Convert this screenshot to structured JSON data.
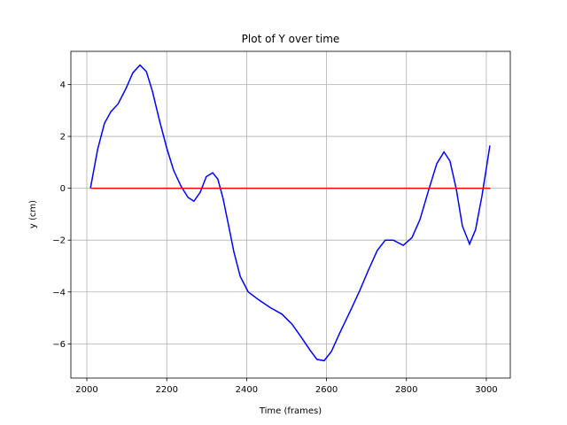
{
  "chart_data": {
    "type": "line",
    "title": "Plot of Y over time",
    "xlabel": "Time (frames)",
    "ylabel": "y (cm)",
    "xlim": [
      1960,
      3060
    ],
    "ylim": [
      -7.32,
      5.28
    ],
    "xticks": [
      2000,
      2200,
      2400,
      2600,
      2800,
      3000
    ],
    "yticks": [
      {
        "value": -6,
        "label": "−6"
      },
      {
        "value": -4,
        "label": "−4"
      },
      {
        "value": -2,
        "label": "−2"
      },
      0,
      2,
      4
    ],
    "grid": true,
    "series": [
      {
        "color": "#0000ff",
        "x": [
          2009,
          2027,
          2044,
          2060,
          2078,
          2098,
          2115,
          2133,
          2149,
          2164,
          2182,
          2200,
          2217,
          2235,
          2253,
          2268,
          2284,
          2299,
          2315,
          2328,
          2341,
          2355,
          2368,
          2384,
          2404,
          2430,
          2459,
          2488,
          2514,
          2537,
          2559,
          2576,
          2594,
          2612,
          2634,
          2659,
          2683,
          2705,
          2727,
          2747,
          2767,
          2792,
          2814,
          2834,
          2856,
          2876,
          2894,
          2909,
          2925,
          2940,
          2958,
          2973,
          2989,
          3009
        ],
        "values": [
          0.0,
          1.5,
          2.5,
          2.95,
          3.25,
          3.85,
          4.45,
          4.75,
          4.5,
          3.75,
          2.6,
          1.55,
          0.7,
          0.1,
          -0.35,
          -0.5,
          -0.15,
          0.45,
          0.6,
          0.35,
          -0.4,
          -1.45,
          -2.45,
          -3.4,
          -4.0,
          -4.3,
          -4.6,
          -4.85,
          -5.25,
          -5.75,
          -6.25,
          -6.6,
          -6.65,
          -6.3,
          -5.55,
          -4.75,
          -3.95,
          -3.15,
          -2.4,
          -2.0,
          -2.0,
          -2.2,
          -1.9,
          -1.2,
          -0.05,
          0.95,
          1.4,
          1.05,
          -0.05,
          -1.45,
          -2.15,
          -1.6,
          -0.3,
          1.65
        ]
      },
      {
        "color": "#ff0000",
        "x": [
          2010,
          3010
        ],
        "values": [
          0,
          0
        ]
      }
    ]
  }
}
